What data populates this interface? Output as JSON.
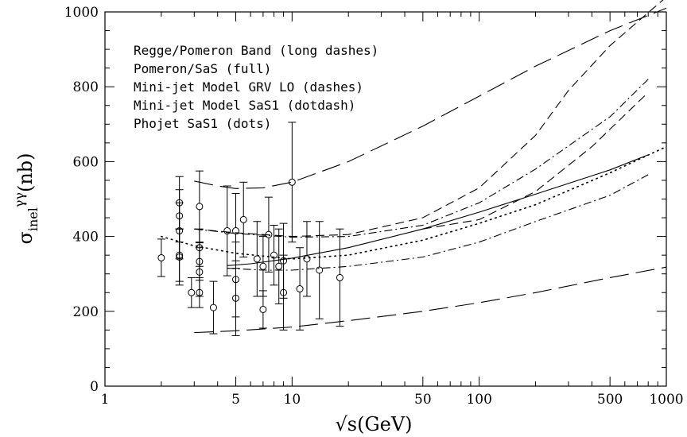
{
  "chart_data": {
    "type": "scatter",
    "title": "",
    "xlabel": "√s(GeV)",
    "ylabel_main": "σ",
    "ylabel_sub": "inel",
    "ylabel_sup": "γγ",
    "ylabel_unit": "(nb)",
    "x_scale": "log",
    "xlim": [
      1,
      1000
    ],
    "ylim": [
      0,
      1000
    ],
    "x_ticks": [
      {
        "value": 1,
        "label": "1"
      },
      {
        "value": 5,
        "label": "5"
      },
      {
        "value": 10,
        "label": "10"
      },
      {
        "value": 50,
        "label": "50"
      },
      {
        "value": 100,
        "label": "100"
      },
      {
        "value": 500,
        "label": "500"
      },
      {
        "value": 1000,
        "label": "1000"
      }
    ],
    "y_ticks": [
      {
        "value": 0,
        "label": "0"
      },
      {
        "value": 200,
        "label": "200"
      },
      {
        "value": 400,
        "label": "400"
      },
      {
        "value": 600,
        "label": "600"
      },
      {
        "value": 800,
        "label": "800"
      },
      {
        "value": 1000,
        "label": "1000"
      }
    ],
    "grid": false,
    "legend_position": "top-left",
    "legend": [
      "Regge/Pomeron Band (long dashes)",
      "Pomeron/SaS (full)",
      "Mini-jet Model GRV LO (dashes)",
      "Mini-jet Model SaS1  (dotdash)",
      "Phojet SaS1 (dots)"
    ],
    "data_points": [
      {
        "x": 2.0,
        "y": 343,
        "yerr_low": 50,
        "yerr_high": 50
      },
      {
        "x": 2.5,
        "y": 490,
        "yerr_low": 70,
        "yerr_high": 70
      },
      {
        "x": 2.5,
        "y": 455,
        "yerr_low": 70,
        "yerr_high": 70
      },
      {
        "x": 2.5,
        "y": 415,
        "yerr_low": 75,
        "yerr_high": 75
      },
      {
        "x": 2.5,
        "y": 350,
        "yerr_low": 70,
        "yerr_high": 70
      },
      {
        "x": 2.5,
        "y": 345,
        "yerr_low": 75,
        "yerr_high": 75
      },
      {
        "x": 2.9,
        "y": 250,
        "yerr_low": 40,
        "yerr_high": 40
      },
      {
        "x": 3.2,
        "y": 480,
        "yerr_low": 95,
        "yerr_high": 95
      },
      {
        "x": 3.2,
        "y": 370,
        "yerr_low": 50,
        "yerr_high": 50
      },
      {
        "x": 3.2,
        "y": 333,
        "yerr_low": 50,
        "yerr_high": 50
      },
      {
        "x": 3.2,
        "y": 305,
        "yerr_low": 65,
        "yerr_high": 65
      },
      {
        "x": 3.2,
        "y": 250,
        "yerr_low": 40,
        "yerr_high": 40
      },
      {
        "x": 3.8,
        "y": 210,
        "yerr_low": 70,
        "yerr_high": 70
      },
      {
        "x": 4.5,
        "y": 415,
        "yerr_low": 120,
        "yerr_high": 120
      },
      {
        "x": 5.0,
        "y": 415,
        "yerr_low": 100,
        "yerr_high": 100
      },
      {
        "x": 5.0,
        "y": 285,
        "yerr_low": 100,
        "yerr_high": 100
      },
      {
        "x": 5.0,
        "y": 235,
        "yerr_low": 100,
        "yerr_high": 100
      },
      {
        "x": 5.5,
        "y": 445,
        "yerr_low": 100,
        "yerr_high": 100
      },
      {
        "x": 6.5,
        "y": 340,
        "yerr_low": 100,
        "yerr_high": 100
      },
      {
        "x": 7.0,
        "y": 320,
        "yerr_low": 80,
        "yerr_high": 80
      },
      {
        "x": 7.0,
        "y": 205,
        "yerr_low": 50,
        "yerr_high": 50
      },
      {
        "x": 7.5,
        "y": 405,
        "yerr_low": 100,
        "yerr_high": 100
      },
      {
        "x": 8.0,
        "y": 350,
        "yerr_low": 80,
        "yerr_high": 80
      },
      {
        "x": 8.5,
        "y": 320,
        "yerr_low": 100,
        "yerr_high": 100
      },
      {
        "x": 9.0,
        "y": 335,
        "yerr_low": 100,
        "yerr_high": 100
      },
      {
        "x": 9.0,
        "y": 250,
        "yerr_low": 100,
        "yerr_high": 100
      },
      {
        "x": 10.0,
        "y": 545,
        "yerr_low": 160,
        "yerr_high": 160
      },
      {
        "x": 11.0,
        "y": 260,
        "yerr_low": 110,
        "yerr_high": 110
      },
      {
        "x": 12.0,
        "y": 340,
        "yerr_low": 100,
        "yerr_high": 100
      },
      {
        "x": 14.0,
        "y": 310,
        "yerr_low": 130,
        "yerr_high": 130
      },
      {
        "x": 18.0,
        "y": 290,
        "yerr_low": 130,
        "yerr_high": 130
      }
    ],
    "curves": [
      {
        "id": "regge_upper",
        "dash": "long",
        "x": [
          3,
          4,
          5,
          7,
          10,
          20,
          50,
          100,
          200,
          500,
          1000
        ],
        "y": [
          548,
          535,
          528,
          530,
          545,
          600,
          695,
          775,
          855,
          950,
          1010
        ]
      },
      {
        "id": "regge_lower",
        "dash": "long",
        "x": [
          3,
          5,
          10,
          20,
          50,
          100,
          200,
          500,
          1000
        ],
        "y": [
          143,
          148,
          158,
          175,
          200,
          223,
          250,
          290,
          318
        ]
      },
      {
        "id": "pomeron_sas",
        "dash": "solid",
        "x": [
          4.5,
          6,
          10,
          20,
          50,
          100,
          200,
          500,
          800
        ],
        "y": [
          322,
          327,
          342,
          370,
          420,
          465,
          513,
          578,
          618
        ]
      },
      {
        "id": "minijet_grv_a",
        "dash": "dash",
        "x": [
          3,
          5,
          10,
          20,
          50,
          100,
          200,
          300,
          500,
          1000
        ],
        "y": [
          420,
          410,
          400,
          405,
          450,
          530,
          670,
          790,
          910,
          1040
        ]
      },
      {
        "id": "minijet_grv_b",
        "dash": "dash",
        "x": [
          50,
          100,
          200,
          400,
          800
        ],
        "y": [
          420,
          445,
          520,
          640,
          785
        ]
      },
      {
        "id": "minijet_sas1_a",
        "dash": "dotdash",
        "x": [
          3,
          5,
          10,
          20,
          50,
          100,
          200,
          500,
          800
        ],
        "y": [
          420,
          408,
          398,
          400,
          430,
          490,
          580,
          720,
          820
        ]
      },
      {
        "id": "minijet_sas1_b",
        "dash": "dotdash",
        "x": [
          4.5,
          7,
          10,
          20,
          50,
          100,
          200,
          500,
          800
        ],
        "y": [
          315,
          310,
          310,
          320,
          345,
          385,
          440,
          510,
          565
        ]
      },
      {
        "id": "phojet_sas1",
        "dash": "dots",
        "x": [
          2,
          3,
          5,
          10,
          20,
          50,
          100,
          200,
          500,
          1000
        ],
        "y": [
          400,
          375,
          355,
          340,
          350,
          390,
          435,
          485,
          570,
          640
        ]
      }
    ]
  }
}
